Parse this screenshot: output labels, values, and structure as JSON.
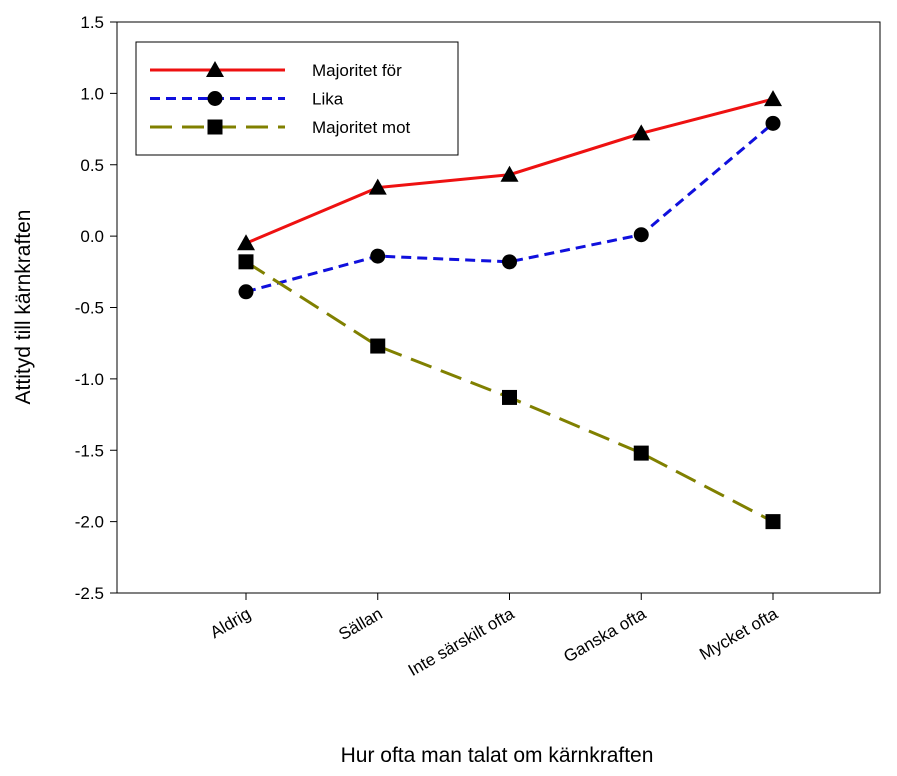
{
  "chart_data": {
    "type": "line",
    "xlabel": "Hur ofta man talat om kärnkraften",
    "ylabel": "Attityd till kärnkraften",
    "categories": [
      "Aldrig",
      "Sällan",
      "Inte särskilt ofta",
      "Ganska ofta",
      "Mycket ofta"
    ],
    "series": [
      {
        "name": "Majoritet för",
        "color": "#ee1111",
        "marker": "triangle",
        "dash": "solid",
        "values": [
          -0.05,
          0.34,
          0.43,
          0.72,
          0.96
        ]
      },
      {
        "name": "Lika",
        "color": "#1010dd",
        "marker": "circle",
        "dash": "short",
        "values": [
          -0.39,
          -0.14,
          -0.18,
          0.01,
          0.79
        ]
      },
      {
        "name": "Majoritet mot",
        "color": "#808000",
        "marker": "square",
        "dash": "long",
        "values": [
          -0.18,
          -0.77,
          -1.13,
          -1.52,
          -2.0
        ]
      }
    ],
    "ylim": [
      -2.5,
      1.5
    ],
    "yticks": [
      -2.5,
      {
        "value": -2,
        "label": "-2.0"
      },
      -1.5,
      {
        "value": -1,
        "label": "-1.0"
      },
      -0.5,
      {
        "value": 0,
        "label": "0.0"
      },
      0.5,
      {
        "value": 1,
        "label": "1.0"
      },
      1.5
    ],
    "legend": "upper left"
  }
}
